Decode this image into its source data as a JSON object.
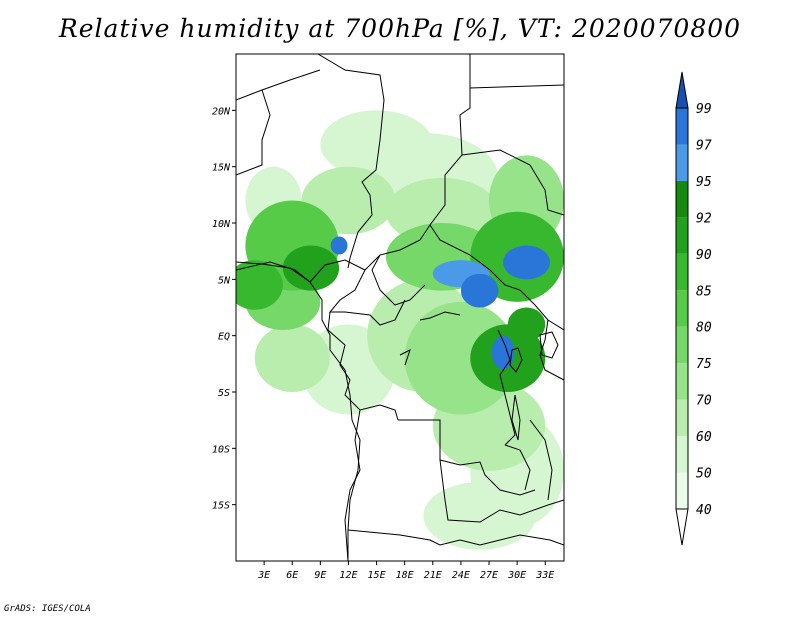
{
  "title": "Relative humidity at 700hPa [%], VT: 2020070800",
  "credit": "GrADS: IGES/COLA",
  "map": {
    "lon_range": [
      0,
      35
    ],
    "lat_range": [
      -20,
      25
    ],
    "lat_ticks": [
      {
        "value": 20,
        "label": "20N"
      },
      {
        "value": 15,
        "label": "15N"
      },
      {
        "value": 10,
        "label": "10N"
      },
      {
        "value": 5,
        "label": "5N"
      },
      {
        "value": 0,
        "label": "EQ"
      },
      {
        "value": -5,
        "label": "5S"
      },
      {
        "value": -10,
        "label": "10S"
      },
      {
        "value": -15,
        "label": "15S"
      }
    ],
    "lon_ticks": [
      {
        "value": 3,
        "label": "3E"
      },
      {
        "value": 6,
        "label": "6E"
      },
      {
        "value": 9,
        "label": "9E"
      },
      {
        "value": 12,
        "label": "12E"
      },
      {
        "value": 15,
        "label": "15E"
      },
      {
        "value": 18,
        "label": "18E"
      },
      {
        "value": 21,
        "label": "21E"
      },
      {
        "value": 24,
        "label": "24E"
      },
      {
        "value": 27,
        "label": "27E"
      },
      {
        "value": 30,
        "label": "30E"
      },
      {
        "value": 33,
        "label": "33E"
      }
    ],
    "humidity_blobs": [
      {
        "lon": 2,
        "lat": 4.5,
        "rx": 3,
        "ry": 2.2,
        "level": 85
      },
      {
        "lon": 6,
        "lat": 8,
        "rx": 5,
        "ry": 4,
        "level": 80
      },
      {
        "lon": 8,
        "lat": 6,
        "rx": 3,
        "ry": 2,
        "level": 90
      },
      {
        "lon": 11,
        "lat": 8,
        "rx": 0.9,
        "ry": 0.8,
        "level": 97
      },
      {
        "lon": 5,
        "lat": 3,
        "rx": 4,
        "ry": 2.5,
        "level": 75
      },
      {
        "lon": 12,
        "lat": 12,
        "rx": 5,
        "ry": 3,
        "level": 60
      },
      {
        "lon": 15,
        "lat": 17,
        "rx": 6,
        "ry": 3,
        "level": 50
      },
      {
        "lon": 20,
        "lat": 14,
        "rx": 8,
        "ry": 4,
        "level": 50
      },
      {
        "lon": 22,
        "lat": 7,
        "rx": 6,
        "ry": 3,
        "level": 75
      },
      {
        "lon": 24,
        "lat": 5.5,
        "rx": 3,
        "ry": 1.2,
        "level": 95
      },
      {
        "lon": 26,
        "lat": 4,
        "rx": 2,
        "ry": 1.5,
        "level": 97
      },
      {
        "lon": 31,
        "lat": 6.5,
        "rx": 2.5,
        "ry": 1.5,
        "level": 97
      },
      {
        "lon": 30,
        "lat": 7,
        "rx": 5,
        "ry": 4,
        "level": 85
      },
      {
        "lon": 29,
        "lat": -2,
        "rx": 4,
        "ry": 3,
        "level": 90
      },
      {
        "lon": 28.5,
        "lat": -1.5,
        "rx": 1.2,
        "ry": 1.5,
        "level": 97
      },
      {
        "lon": 31,
        "lat": 1,
        "rx": 2,
        "ry": 1.5,
        "level": 90
      },
      {
        "lon": 24,
        "lat": -2,
        "rx": 6,
        "ry": 5,
        "level": 70
      },
      {
        "lon": 20,
        "lat": 0,
        "rx": 6,
        "ry": 5,
        "level": 60
      },
      {
        "lon": 12,
        "lat": -3,
        "rx": 5,
        "ry": 4,
        "level": 50
      },
      {
        "lon": 6,
        "lat": -2,
        "rx": 4,
        "ry": 3,
        "level": 60
      },
      {
        "lon": 27,
        "lat": -8,
        "rx": 6,
        "ry": 4,
        "level": 60
      },
      {
        "lon": 30,
        "lat": -12,
        "rx": 5,
        "ry": 5,
        "level": 50
      },
      {
        "lon": 26,
        "lat": -16,
        "rx": 6,
        "ry": 3,
        "level": 50
      },
      {
        "lon": 31,
        "lat": 12,
        "rx": 4,
        "ry": 4,
        "level": 70
      },
      {
        "lon": 22,
        "lat": 11,
        "rx": 6,
        "ry": 3,
        "level": 60
      },
      {
        "lon": 4,
        "lat": 12,
        "rx": 3,
        "ry": 3,
        "level": 50
      }
    ]
  },
  "colorbar": {
    "levels": [
      {
        "label": "40",
        "color": "#ebfbe9"
      },
      {
        "label": "50",
        "color": "#d6f5d1"
      },
      {
        "label": "60",
        "color": "#b8edae"
      },
      {
        "label": "70",
        "color": "#96e389"
      },
      {
        "label": "75",
        "color": "#76d868"
      },
      {
        "label": "80",
        "color": "#55cb48"
      },
      {
        "label": "85",
        "color": "#38b82f"
      },
      {
        "label": "90",
        "color": "#22a11c"
      },
      {
        "label": "92",
        "color": "#148a0f"
      },
      {
        "label": "95",
        "color": "#4a9ae8"
      },
      {
        "label": "97",
        "color": "#2a75d8"
      },
      {
        "label": "99",
        "color": "#1650b0"
      }
    ],
    "below_color": "#ffffff",
    "above_color": "#1650b0"
  }
}
